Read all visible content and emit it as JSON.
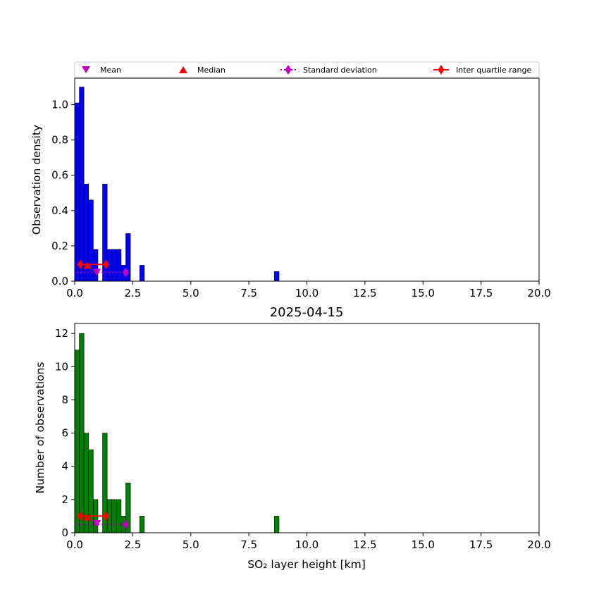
{
  "chart_data": [
    {
      "type": "bar",
      "panel": "density",
      "title": "",
      "xlabel": "",
      "ylabel": "Observation density",
      "xlim": [
        0,
        20
      ],
      "ylim": [
        0,
        1.15
      ],
      "xticks": [
        "0.0",
        "2.5",
        "5.0",
        "7.5",
        "10.0",
        "12.5",
        "15.0",
        "17.5",
        "20.0"
      ],
      "yticks": [
        "0.0",
        "0.2",
        "0.4",
        "0.6",
        "0.8",
        "1.0"
      ],
      "bar_color": "#0000ff",
      "bin_width": 0.2,
      "bars": [
        {
          "x": 0.0,
          "value": 1.01
        },
        {
          "x": 0.2,
          "value": 1.1
        },
        {
          "x": 0.4,
          "value": 0.55
        },
        {
          "x": 0.6,
          "value": 0.46
        },
        {
          "x": 0.8,
          "value": 0.18
        },
        {
          "x": 1.2,
          "value": 0.55
        },
        {
          "x": 1.4,
          "value": 0.18
        },
        {
          "x": 1.6,
          "value": 0.18
        },
        {
          "x": 1.8,
          "value": 0.18
        },
        {
          "x": 2.0,
          "value": 0.09
        },
        {
          "x": 2.2,
          "value": 0.27
        },
        {
          "x": 2.8,
          "value": 0.09
        },
        {
          "x": 8.6,
          "value": 0.055
        }
      ],
      "stats": {
        "mean": {
          "x": 0.95,
          "y": 0.05
        },
        "median": {
          "x": 0.55,
          "y": 0.09
        },
        "std": {
          "x0": 0.1,
          "x1": 2.2,
          "y": 0.05
        },
        "iqr": {
          "x0": 0.25,
          "x1": 1.35,
          "y": 0.095
        }
      },
      "grid": false
    },
    {
      "type": "bar",
      "panel": "count",
      "title": "2025-04-15",
      "xlabel": "SO₂ layer height [km]",
      "ylabel": "Number of observations",
      "xlim": [
        0,
        20
      ],
      "ylim": [
        0,
        12.6
      ],
      "xticks": [
        "0.0",
        "2.5",
        "5.0",
        "7.5",
        "10.0",
        "12.5",
        "15.0",
        "17.5",
        "20.0"
      ],
      "yticks": [
        "0",
        "2",
        "4",
        "6",
        "8",
        "10",
        "12"
      ],
      "bar_color": "#008000",
      "bin_width": 0.2,
      "bars": [
        {
          "x": 0.0,
          "value": 11
        },
        {
          "x": 0.2,
          "value": 12
        },
        {
          "x": 0.4,
          "value": 6
        },
        {
          "x": 0.6,
          "value": 5
        },
        {
          "x": 0.8,
          "value": 2
        },
        {
          "x": 1.2,
          "value": 6
        },
        {
          "x": 1.4,
          "value": 2
        },
        {
          "x": 1.6,
          "value": 2
        },
        {
          "x": 1.8,
          "value": 2
        },
        {
          "x": 2.0,
          "value": 1
        },
        {
          "x": 2.2,
          "value": 3
        },
        {
          "x": 2.8,
          "value": 1
        },
        {
          "x": 8.6,
          "value": 1
        }
      ],
      "stats": {
        "mean": {
          "x": 0.95,
          "y": 0.55
        },
        "median": {
          "x": 0.55,
          "y": 0.95
        },
        "std": {
          "x0": 0.1,
          "x1": 2.2,
          "y": 0.5
        },
        "iqr": {
          "x0": 0.25,
          "x1": 1.35,
          "y": 1.0
        }
      },
      "grid": false
    }
  ],
  "legend": {
    "placement": "top",
    "items": [
      {
        "label": "Mean",
        "marker": "triangle-down",
        "color": "#bf00bf"
      },
      {
        "label": "Median",
        "marker": "triangle-up",
        "color": "#ff0000"
      },
      {
        "label": "Standard deviation",
        "marker": "diamond-dotted-line",
        "color": "#bf00bf"
      },
      {
        "label": "Inter quartile range",
        "marker": "diamond-solid-line",
        "color": "#ff0000"
      }
    ]
  }
}
